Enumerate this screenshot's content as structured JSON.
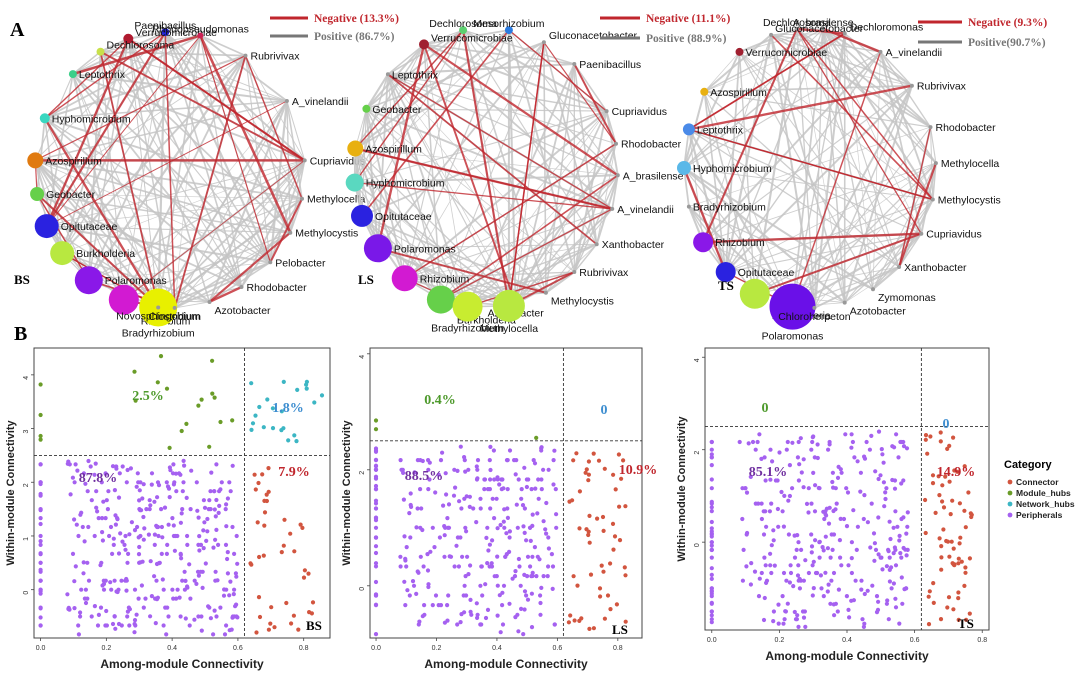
{
  "panel_labels": {
    "a": "A",
    "b": "B"
  },
  "colors": {
    "negative": "#c0262d",
    "positive": "#777777",
    "pct_green": "#4e9a2c",
    "pct_blue": "#3e8ed0",
    "pct_purple": "#7030a0",
    "pct_red": "#c0262d",
    "connector": "#d2553f",
    "module_hubs": "#6a9c28",
    "network_hubs": "#3cb6c4",
    "peripherals": "#a561f0"
  },
  "chart_data": [
    {
      "type": "network",
      "label": "BS",
      "legend": {
        "negative": "Negative (13.3%)",
        "positive": "Positive (86.7%)"
      },
      "nodes": [
        {
          "name": "Paenibacillus",
          "color": "#2424d8",
          "r": 4,
          "angle": 92
        },
        {
          "name": "Verrucomicrobiae",
          "color": "#b01a30",
          "r": 5,
          "angle": 108
        },
        {
          "name": "Dechlorosoma",
          "color": "#c8e04a",
          "r": 4,
          "angle": 121
        },
        {
          "name": "Rhodopseudomonas",
          "color": "#cc2255",
          "r": 3,
          "angle": 77
        },
        {
          "name": "Leptothrix",
          "color": "#3ccf8a",
          "r": 4,
          "angle": 136
        },
        {
          "name": "Rubrivivax",
          "color": "#999999",
          "r": 2,
          "angle": 56
        },
        {
          "name": "Hyphomicrobium",
          "color": "#3ad7c0",
          "r": 5,
          "angle": 158
        },
        {
          "name": "A_vinelandii",
          "color": "#999999",
          "r": 2,
          "angle": 30
        },
        {
          "name": "Azospirillum",
          "color": "#e07a10",
          "r": 8,
          "angle": 176
        },
        {
          "name": "Cupriavidus",
          "color": "#999999",
          "r": 2,
          "angle": 4
        },
        {
          "name": "Geobacter",
          "color": "#66d04a",
          "r": 7,
          "angle": 190
        },
        {
          "name": "Methylocella",
          "color": "#999999",
          "r": 2,
          "angle": -12
        },
        {
          "name": "Opitutaceae",
          "color": "#2a22e0",
          "r": 12,
          "angle": 204
        },
        {
          "name": "Methylocystis",
          "color": "#999999",
          "r": 2,
          "angle": -27
        },
        {
          "name": "Burkholderia",
          "color": "#b8e840",
          "r": 12,
          "angle": 217
        },
        {
          "name": "Pelobacter",
          "color": "#999999",
          "r": 2,
          "angle": -42
        },
        {
          "name": "Polaromonas",
          "color": "#8a18e8",
          "r": 14,
          "angle": 233
        },
        {
          "name": "Rhodobacter",
          "color": "#999999",
          "r": 2,
          "angle": -58
        },
        {
          "name": "Rhizobium",
          "color": "#d21ad2",
          "r": 15,
          "angle": 250
        },
        {
          "name": "Azotobacter",
          "color": "#999999",
          "r": 2,
          "angle": -73
        },
        {
          "name": "Bradyrhizobium",
          "color": "#e8f000",
          "r": 19,
          "angle": 265
        },
        {
          "name": "Clostridium",
          "color": "#999999",
          "r": 2,
          "angle": -88
        },
        {
          "name": "Novosphingobium",
          "color": "#999999",
          "r": 2,
          "angle": -95
        }
      ]
    },
    {
      "type": "network",
      "label": "LS",
      "legend": {
        "negative": "Negative (11.1%)",
        "positive": "Positive (88.9%)"
      },
      "nodes": [
        {
          "name": "Dechlorosoma",
          "color": "#5cd070",
          "r": 4,
          "angle": 100
        },
        {
          "name": "Mesorhizobium",
          "color": "#2a7ae0",
          "r": 4,
          "angle": 80
        },
        {
          "name": "Verrucomicrobiae",
          "color": "#a02030",
          "r": 5,
          "angle": 118
        },
        {
          "name": "Gluconacetobacter",
          "color": "#999999",
          "r": 2,
          "angle": 64
        },
        {
          "name": "Paenibacillus",
          "color": "#999999",
          "r": 2,
          "angle": 48
        },
        {
          "name": "Leptothrix",
          "color": "#999999",
          "r": 2,
          "angle": 138
        },
        {
          "name": "Geobacter",
          "color": "#66d04a",
          "r": 4,
          "angle": 155
        },
        {
          "name": "Cupriavidus",
          "color": "#999999",
          "r": 2,
          "angle": 24
        },
        {
          "name": "Azospirillum",
          "color": "#e8b010",
          "r": 8,
          "angle": 172
        },
        {
          "name": "Rhodobacter",
          "color": "#999999",
          "r": 2,
          "angle": 10
        },
        {
          "name": "Hyphomicrobium",
          "color": "#5ad8c0",
          "r": 9,
          "angle": 186
        },
        {
          "name": "A_brasilense",
          "color": "#999999",
          "r": 2,
          "angle": -3
        },
        {
          "name": "Opitutaceae",
          "color": "#2a22e0",
          "r": 11,
          "angle": 200
        },
        {
          "name": "A_vinelandii",
          "color": "#999999",
          "r": 2,
          "angle": -17
        },
        {
          "name": "Polaromonas",
          "color": "#7a18e8",
          "r": 14,
          "angle": 215
        },
        {
          "name": "Xanthobacter",
          "color": "#999999",
          "r": 2,
          "angle": -33
        },
        {
          "name": "Rhizobium",
          "color": "#d21ad2",
          "r": 13,
          "angle": 232
        },
        {
          "name": "Rubrivivax",
          "color": "#999999",
          "r": 2,
          "angle": -48
        },
        {
          "name": "Burkholderia",
          "color": "#66d04a",
          "r": 14,
          "angle": 250
        },
        {
          "name": "Methylocystis",
          "color": "#999999",
          "r": 2,
          "angle": -63
        },
        {
          "name": "Bradyrhizobium",
          "color": "#c8ec30",
          "r": 15,
          "angle": 262
        },
        {
          "name": "Azotobacter",
          "color": "#999999",
          "r": 2,
          "angle": -77
        },
        {
          "name": "Methylocella",
          "color": "#b8e840",
          "r": 16,
          "angle": 280
        }
      ]
    },
    {
      "type": "network",
      "label": "TS",
      "legend": {
        "negative": "Negative (9.3%)",
        "positive": "Positive(90.7%)"
      },
      "nodes": [
        {
          "name": "A_brasilense",
          "color": "#999999",
          "r": 2,
          "angle": 84
        },
        {
          "name": "Dechlorosoma",
          "color": "#999999",
          "r": 2,
          "angle": 96
        },
        {
          "name": "Gluconacetobacter",
          "color": "#999999",
          "r": 2,
          "angle": 108
        },
        {
          "name": "Dechloromonas",
          "color": "#999999",
          "r": 2,
          "angle": 74
        },
        {
          "name": "Verrucomicrobiae",
          "color": "#a02030",
          "r": 4,
          "angle": 124
        },
        {
          "name": "A_vinelandii",
          "color": "#999999",
          "r": 2,
          "angle": 56
        },
        {
          "name": "Azospirillum",
          "color": "#e8b010",
          "r": 4,
          "angle": 147
        },
        {
          "name": "Rubrivivax",
          "color": "#999999",
          "r": 2,
          "angle": 36
        },
        {
          "name": "Leptothrix",
          "color": "#4a8ae8",
          "r": 6,
          "angle": 164
        },
        {
          "name": "Rhodobacter",
          "color": "#999999",
          "r": 2,
          "angle": 17
        },
        {
          "name": "Hyphomicrobium",
          "color": "#5ab8e8",
          "r": 7,
          "angle": 180
        },
        {
          "name": "Methylocella",
          "color": "#999999",
          "r": 2,
          "angle": 2
        },
        {
          "name": "Bradyrhizobium",
          "color": "#999999",
          "r": 2,
          "angle": 196
        },
        {
          "name": "Methylocystis",
          "color": "#999999",
          "r": 2,
          "angle": -13
        },
        {
          "name": "Rhizobium",
          "color": "#8a18e8",
          "r": 10,
          "angle": 212
        },
        {
          "name": "Cupriavidus",
          "color": "#999999",
          "r": 2,
          "angle": -28
        },
        {
          "name": "Opitutaceae",
          "color": "#2a22e0",
          "r": 10,
          "angle": 228
        },
        {
          "name": "Xanthobacter",
          "color": "#999999",
          "r": 2,
          "angle": -45
        },
        {
          "name": "Burkholderia",
          "color": "#b8e840",
          "r": 15,
          "angle": 244
        },
        {
          "name": "Zymomonas",
          "color": "#999999",
          "r": 2,
          "angle": -60
        },
        {
          "name": "Polaromonas",
          "color": "#6a10e8",
          "r": 23,
          "angle": 262
        },
        {
          "name": "Azotobacter",
          "color": "#999999",
          "r": 2,
          "angle": -74
        },
        {
          "name": "Chloroherpeton",
          "color": "#999999",
          "r": 2,
          "angle": -88
        }
      ]
    },
    {
      "type": "scatter",
      "label": "BS",
      "xlabel": "Among-module Connectivity",
      "ylabel": "Within-module Connectivity",
      "xlim": [
        -0.02,
        0.88
      ],
      "ylim": [
        -0.9,
        4.5
      ],
      "xticks": [
        "0.0",
        "0.2",
        "0.4",
        "0.6",
        "0.8"
      ],
      "yticks": [
        "0",
        "1",
        "2",
        "3",
        "4"
      ],
      "threshold": {
        "x": 0.62,
        "y": 2.5
      },
      "quadrants": {
        "top_left": "2.5%",
        "top_right": "1.8%",
        "bottom_left": "87.8%",
        "bottom_right": "7.9%"
      }
    },
    {
      "type": "scatter",
      "label": "LS",
      "xlabel": "Among-module Connectivity",
      "ylabel": "Within-module Connectivity",
      "xlim": [
        -0.02,
        0.88
      ],
      "ylim": [
        -0.9,
        4.1
      ],
      "xticks": [
        "0.0",
        "0.2",
        "0.4",
        "0.6",
        "0.8"
      ],
      "yticks": [
        "0",
        "2",
        "4"
      ],
      "ytick_values": [
        0,
        2,
        4
      ],
      "threshold": {
        "x": 0.62,
        "y": 2.5
      },
      "quadrants": {
        "top_left": "0.4%",
        "top_right": "0",
        "bottom_left": "88.5%",
        "bottom_right": "10.9%"
      }
    },
    {
      "type": "scatter",
      "label": "TS",
      "xlabel": "Among-module Connectivity",
      "ylabel": "Within-module Connectivity",
      "xlim": [
        -0.02,
        0.82
      ],
      "ylim": [
        -1.9,
        4.2
      ],
      "xticks": [
        "0.0",
        "0.2",
        "0.4",
        "0.6",
        "0.8"
      ],
      "yticks": [
        "0",
        "2",
        "4"
      ],
      "ytick_values": [
        0,
        2,
        4
      ],
      "threshold": {
        "x": 0.62,
        "y": 2.5
      },
      "quadrants": {
        "top_left": "0",
        "top_right": "0",
        "bottom_left": "85.1%",
        "bottom_right": "14.9%"
      }
    }
  ],
  "legend": {
    "title": "Category",
    "items": [
      {
        "name": "Connector",
        "color": "#d2553f"
      },
      {
        "name": "Module_hubs",
        "color": "#6a9c28"
      },
      {
        "name": "Network_hubs",
        "color": "#3cb6c4"
      },
      {
        "name": "Peripherals",
        "color": "#a561f0"
      }
    ]
  }
}
